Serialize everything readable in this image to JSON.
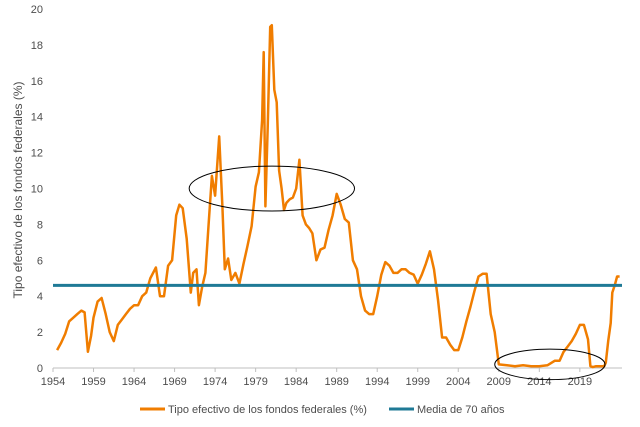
{
  "chart_data": {
    "type": "line",
    "ylabel": "Tipo efectivo de los fondos federales (%)",
    "xlabel": "",
    "ylim": [
      0,
      20
    ],
    "xlim": [
      1954,
      2024.2
    ],
    "yticks": [
      "0",
      "2",
      "4",
      "6",
      "8",
      "10",
      "12",
      "14",
      "16",
      "18",
      "20"
    ],
    "xticks": [
      "1954",
      "1959",
      "1964",
      "1969",
      "1974",
      "1979",
      "1984",
      "1989",
      "1994",
      "1999",
      "2004",
      "2009",
      "2014",
      "2019"
    ],
    "grid": false,
    "legend_position": "bottom",
    "colors": {
      "rate": "#F07D00",
      "average": "#1F7A96",
      "annotation": "#000000"
    },
    "series": [
      {
        "name": "Tipo efectivo de los fondos federales (%)",
        "type": "line",
        "x": [
          1954.5,
          1955.0,
          1955.5,
          1956.0,
          1956.5,
          1957.0,
          1957.5,
          1957.9,
          1958.3,
          1958.7,
          1959.0,
          1959.5,
          1960.0,
          1960.5,
          1961.0,
          1961.5,
          1962.0,
          1962.5,
          1963.0,
          1963.5,
          1964.0,
          1964.5,
          1965.0,
          1965.5,
          1966.0,
          1966.7,
          1967.2,
          1967.7,
          1968.2,
          1968.7,
          1969.2,
          1969.6,
          1970.0,
          1970.5,
          1971.0,
          1971.3,
          1971.7,
          1972.0,
          1972.4,
          1972.8,
          1973.2,
          1973.6,
          1974.0,
          1974.5,
          1974.9,
          1975.2,
          1975.6,
          1976.0,
          1976.5,
          1977.0,
          1977.5,
          1978.0,
          1978.5,
          1979.0,
          1979.4,
          1979.8,
          1980.0,
          1980.2,
          1980.5,
          1980.8,
          1981.0,
          1981.3,
          1981.6,
          1981.9,
          1982.2,
          1982.5,
          1982.8,
          1983.2,
          1983.6,
          1984.0,
          1984.4,
          1984.8,
          1985.2,
          1985.6,
          1986.0,
          1986.5,
          1987.0,
          1987.5,
          1988.0,
          1988.5,
          1989.0,
          1989.5,
          1990.0,
          1990.5,
          1991.0,
          1991.5,
          1992.0,
          1992.5,
          1993.0,
          1993.5,
          1994.0,
          1994.5,
          1995.0,
          1995.5,
          1996.0,
          1996.5,
          1997.0,
          1997.5,
          1998.0,
          1998.5,
          1999.0,
          1999.5,
          2000.0,
          2000.5,
          2001.0,
          2001.5,
          2002.0,
          2002.5,
          2003.0,
          2003.5,
          2004.0,
          2004.5,
          2005.0,
          2005.5,
          2006.0,
          2006.5,
          2007.0,
          2007.5,
          2008.0,
          2008.5,
          2009.0,
          2010.0,
          2011.0,
          2012.0,
          2013.0,
          2014.0,
          2015.0,
          2015.9,
          2016.5,
          2017.0,
          2017.5,
          2018.0,
          2018.5,
          2019.0,
          2019.5,
          2020.0,
          2020.3,
          2020.6,
          2021.0,
          2021.5,
          2022.0,
          2022.2,
          2022.5,
          2022.8,
          2023.0,
          2023.3,
          2023.6,
          2023.9
        ],
        "y": [
          1.0,
          1.4,
          1.9,
          2.6,
          2.8,
          3.0,
          3.2,
          3.1,
          0.9,
          1.8,
          2.8,
          3.7,
          3.9,
          3.0,
          2.0,
          1.5,
          2.4,
          2.7,
          3.0,
          3.3,
          3.5,
          3.5,
          4.0,
          4.2,
          5.0,
          5.6,
          4.0,
          4.0,
          5.7,
          6.0,
          8.5,
          9.1,
          8.9,
          7.2,
          4.2,
          5.3,
          5.5,
          3.5,
          4.5,
          5.3,
          8.0,
          10.7,
          9.6,
          12.9,
          9.0,
          5.5,
          6.1,
          4.9,
          5.3,
          4.7,
          5.8,
          6.8,
          7.9,
          10.1,
          10.9,
          13.8,
          17.6,
          9.0,
          13.6,
          19.0,
          19.1,
          15.5,
          14.8,
          11.0,
          10.0,
          8.8,
          9.2,
          9.4,
          9.5,
          10.0,
          11.6,
          8.5,
          8.0,
          7.8,
          7.5,
          6.0,
          6.6,
          6.7,
          7.7,
          8.5,
          9.7,
          9.1,
          8.3,
          8.1,
          6.0,
          5.5,
          4.0,
          3.2,
          3.0,
          3.0,
          4.0,
          5.2,
          5.9,
          5.7,
          5.3,
          5.3,
          5.5,
          5.5,
          5.3,
          5.2,
          4.7,
          5.2,
          5.8,
          6.5,
          5.5,
          3.8,
          1.7,
          1.7,
          1.3,
          1.0,
          1.0,
          1.7,
          2.6,
          3.4,
          4.3,
          5.1,
          5.25,
          5.25,
          3.0,
          2.0,
          0.2,
          0.15,
          0.1,
          0.15,
          0.1,
          0.1,
          0.15,
          0.4,
          0.4,
          0.9,
          1.2,
          1.5,
          1.9,
          2.4,
          2.4,
          1.6,
          0.1,
          0.05,
          0.1,
          0.1,
          0.1,
          0.3,
          1.5,
          2.5,
          4.2,
          4.6,
          5.1,
          5.1
        ]
      },
      {
        "name": "Media de 70 años",
        "type": "hline",
        "value": 4.6
      }
    ],
    "annotations": [
      {
        "type": "ellipse",
        "shape": "ellipse",
        "cx": 1981,
        "cy": 10,
        "rx": 10.2,
        "ry": 1.25
      },
      {
        "type": "ellipse",
        "shape": "ellipse",
        "cx": 2015.3,
        "cy": 0.2,
        "rx": 6.8,
        "ry": 0.85
      }
    ],
    "legend": {
      "rate_label": "Tipo efectivo de los fondos federales (%)",
      "average_label": "Media de 70 años"
    }
  }
}
